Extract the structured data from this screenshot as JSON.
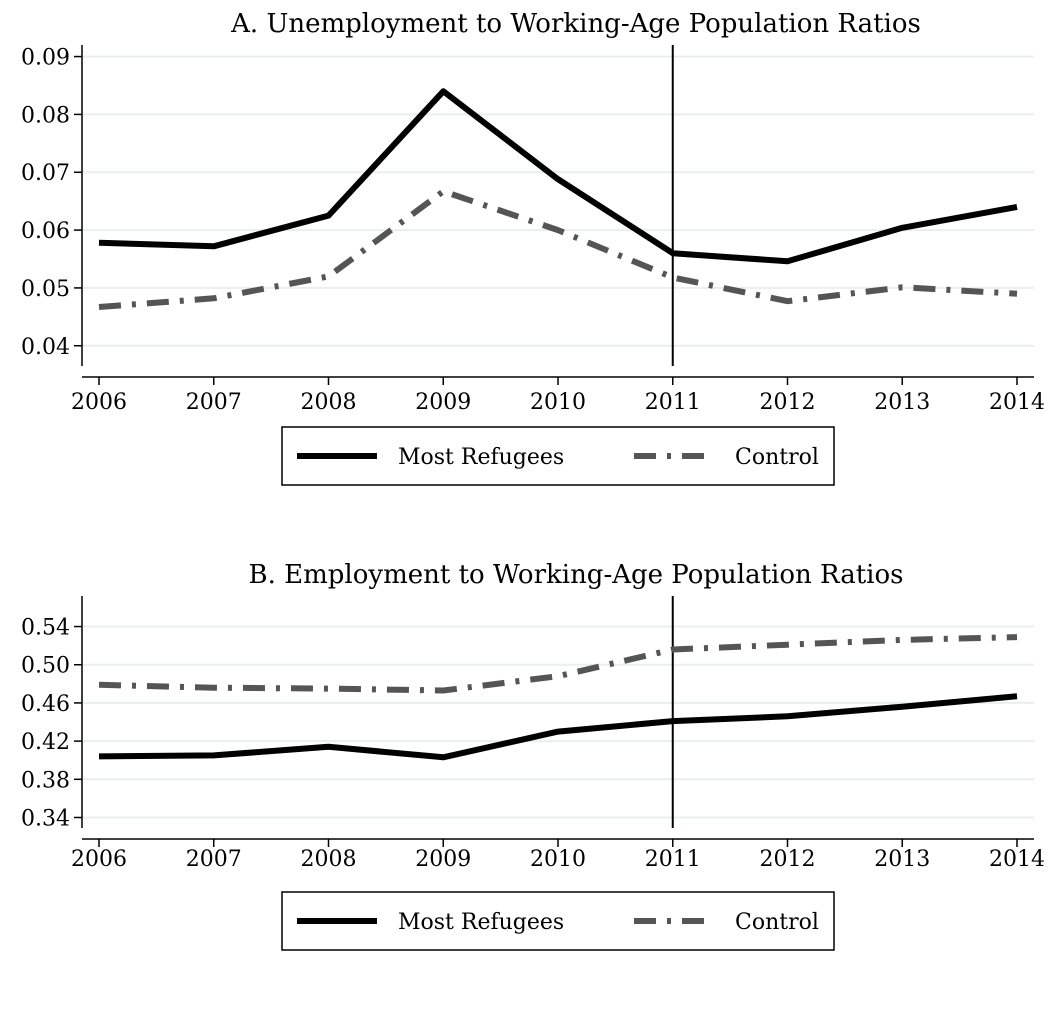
{
  "chart_data": [
    {
      "type": "line",
      "title": "A. Unemployment to Working-Age Population Ratios",
      "xlabel": "",
      "ylabel": "",
      "x": [
        2006,
        2007,
        2008,
        2009,
        2010,
        2011,
        2012,
        2013,
        2014
      ],
      "xticks": [
        "2006",
        "2007",
        "2008",
        "2009",
        "2010",
        "2011",
        "2012",
        "2013",
        "2014"
      ],
      "yticks": [
        "0.04",
        "0.05",
        "0.06",
        "0.07",
        "0.08",
        "0.09"
      ],
      "ylim": [
        0.0365,
        0.092
      ],
      "grid": true,
      "vline_x": 2011,
      "legend_position": "bottom",
      "series": [
        {
          "name": "Most Refugees",
          "color": "#000000",
          "style": "solid",
          "values": [
            0.0578,
            0.0572,
            0.0625,
            0.084,
            0.0688,
            0.056,
            0.0546,
            0.0604,
            0.064
          ]
        },
        {
          "name": "Control",
          "color": "#555555",
          "style": "dash-dot",
          "values": [
            0.0467,
            0.0482,
            0.052,
            0.0667,
            0.06,
            0.0518,
            0.0477,
            0.0501,
            0.049
          ]
        }
      ]
    },
    {
      "type": "line",
      "title": "B. Employment to Working-Age Population Ratios",
      "xlabel": "",
      "ylabel": "",
      "x": [
        2006,
        2007,
        2008,
        2009,
        2010,
        2011,
        2012,
        2013,
        2014
      ],
      "xticks": [
        "2006",
        "2007",
        "2008",
        "2009",
        "2010",
        "2011",
        "2012",
        "2013",
        "2014"
      ],
      "yticks": [
        "0.34",
        "0.38",
        "0.42",
        "0.46",
        "0.50",
        "0.54"
      ],
      "ylim": [
        0.329,
        0.572
      ],
      "grid": true,
      "vline_x": 2011,
      "legend_position": "bottom",
      "series": [
        {
          "name": "Most Refugees",
          "color": "#000000",
          "style": "solid",
          "values": [
            0.404,
            0.405,
            0.414,
            0.403,
            0.43,
            0.441,
            0.446,
            0.456,
            0.467
          ]
        },
        {
          "name": "Control",
          "color": "#555555",
          "style": "dash-dot",
          "values": [
            0.479,
            0.476,
            0.475,
            0.473,
            0.488,
            0.516,
            0.521,
            0.526,
            0.529
          ]
        }
      ]
    }
  ]
}
